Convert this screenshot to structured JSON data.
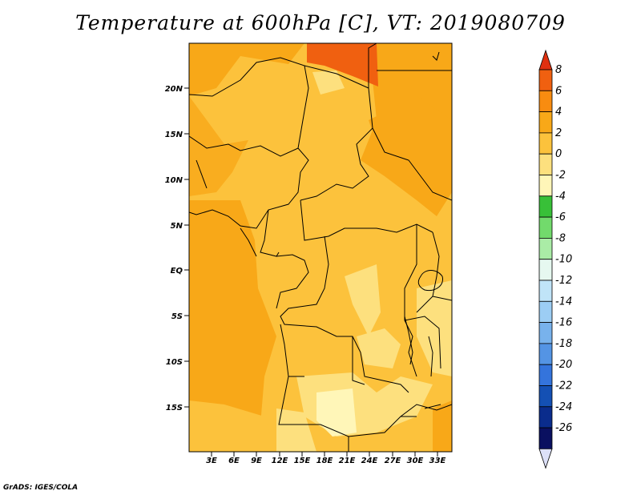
{
  "title": "Temperature at 600hPa [C], VT: 2019080709",
  "credit": "GrADS: IGES/COLA",
  "map": {
    "lat_labels": [
      "20N",
      "15N",
      "10N",
      "5N",
      "EQ",
      "5S",
      "10S",
      "15S"
    ],
    "lon_labels": [
      "3E",
      "6E",
      "9E",
      "12E",
      "15E",
      "18E",
      "21E",
      "24E",
      "27E",
      "30E",
      "33E"
    ]
  },
  "colorbar": {
    "labels": [
      "8",
      "6",
      "4",
      "2",
      "0",
      "-2",
      "-4",
      "-6",
      "-8",
      "-10",
      "-12",
      "-14",
      "-16",
      "-18",
      "-20",
      "-22",
      "-24",
      "-26"
    ],
    "colors": [
      "#e03010",
      "#f06010",
      "#f88c10",
      "#f8a818",
      "#fcc23c",
      "#fde07e",
      "#fff6b8",
      "#38c038",
      "#72da6c",
      "#aaeca6",
      "#e6f8f0",
      "#c0e4f8",
      "#9ccdf4",
      "#78b2ec",
      "#5494e4",
      "#3474dc",
      "#1450b4",
      "#0a2c8c",
      "#0a1060",
      "#dce0f8"
    ]
  }
}
